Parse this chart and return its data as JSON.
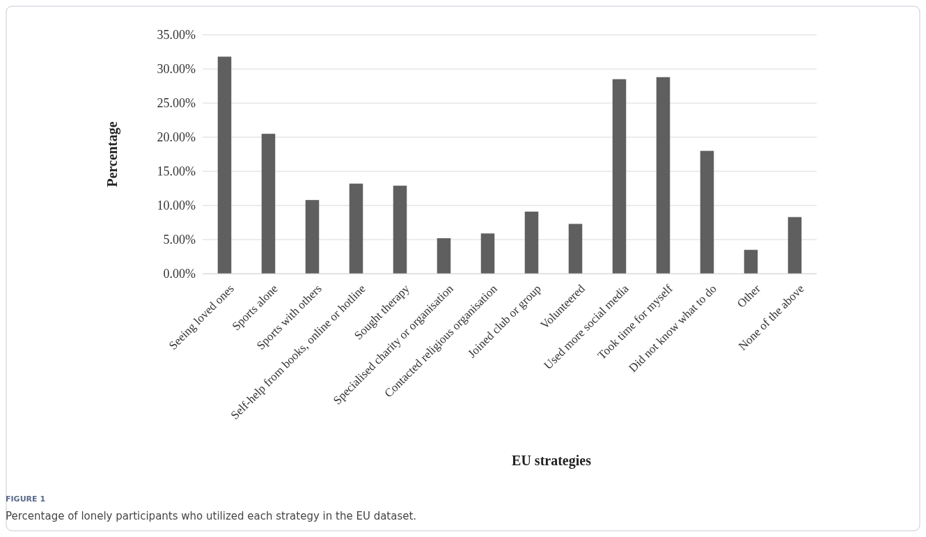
{
  "chart_data": {
    "type": "bar",
    "xlabel": "EU strategies",
    "ylabel": "Percentage",
    "categories": [
      "Seeing loved ones",
      "Sports alone",
      "Sports with others",
      "Self-help from books, online or hotline",
      "Sought therapy",
      "Specialised charity or organisation",
      "Contacted religious organisation",
      "Joined club or group",
      "Volunteered",
      "Used more social media",
      "Took time for myself",
      "Did not know what to do",
      "Other",
      "None of the above"
    ],
    "values": [
      31.8,
      20.5,
      10.8,
      13.2,
      12.9,
      5.2,
      5.9,
      9.1,
      7.3,
      28.5,
      28.8,
      18.0,
      3.5,
      8.3
    ],
    "color": "#5f5f5f",
    "ylim": [
      0,
      35
    ],
    "yticks": [
      {
        "value": 0,
        "label": "0.00%"
      },
      {
        "value": 5,
        "label": "5.00%"
      },
      {
        "value": 10,
        "label": "10.00%"
      },
      {
        "value": 15,
        "label": "15.00%"
      },
      {
        "value": 20,
        "label": "20.00%"
      },
      {
        "value": 25,
        "label": "25.00%"
      },
      {
        "value": 30,
        "label": "30.00%"
      },
      {
        "value": 35,
        "label": "35.00%"
      }
    ],
    "grid": "y",
    "annotations": [
      "FIGURE 1",
      "Percentage of lonely participants who utilized each strategy in the EU dataset."
    ]
  }
}
